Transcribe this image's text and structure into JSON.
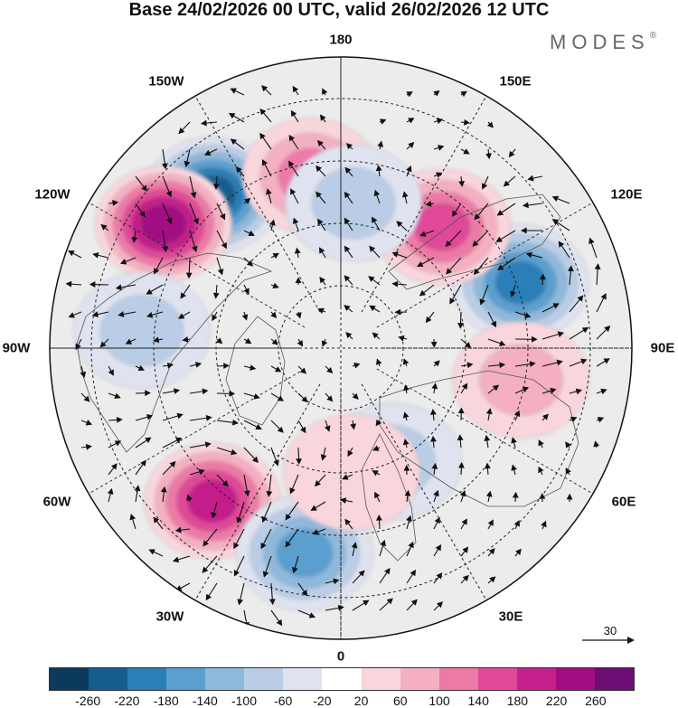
{
  "title": "Base 24/02/2026 00 UTC, valid 26/02/2026 12 UTC",
  "brand": {
    "text": "MODES",
    "mark": "®"
  },
  "longitude_labels": {
    "n180": "180",
    "e150": "150E",
    "e120": "120E",
    "e90": "90E",
    "e60": "60E",
    "e30": "30E",
    "zero": "0",
    "w30": "30W",
    "w60": "60W",
    "w90": "90W",
    "w120": "120W",
    "w150": "150W"
  },
  "reference_vector": {
    "value": "30",
    "icon": "arrow-right-icon"
  },
  "colorbar": {
    "colors": [
      "#0b3a5c",
      "#145d8f",
      "#2a7fb8",
      "#5a9fcf",
      "#8eb8dc",
      "#b9cde6",
      "#dfe3f0",
      "#ffffff",
      "#f9d6dc",
      "#f4b0c2",
      "#ec7aa6",
      "#e04997",
      "#c41f8a",
      "#a20e82",
      "#6b0d73"
    ],
    "ticks": [
      "-260",
      "-220",
      "-180",
      "-140",
      "-100",
      "-60",
      "-20",
      "20",
      "60",
      "100",
      "140",
      "180",
      "220",
      "260"
    ]
  },
  "anomaly_centers": [
    {
      "lon": -140,
      "lat": 42,
      "value": -250
    },
    {
      "lon": -125,
      "lat": 38,
      "value": 230
    },
    {
      "lon": 110,
      "lat": 44,
      "value": -210
    },
    {
      "lon": 140,
      "lat": 52,
      "value": 150
    },
    {
      "lon": -40,
      "lat": 42,
      "value": 190
    },
    {
      "lon": -10,
      "lat": 40,
      "value": -170
    },
    {
      "lon": -170,
      "lat": 48,
      "value": 110
    },
    {
      "lon": 175,
      "lat": 55,
      "value": -80
    },
    {
      "lon": 80,
      "lat": 46,
      "value": 60
    },
    {
      "lon": -95,
      "lat": 42,
      "value": -70
    },
    {
      "lon": 25,
      "lat": 60,
      "value": -60
    },
    {
      "lon": 5,
      "lat": 60,
      "value": 50
    }
  ]
}
